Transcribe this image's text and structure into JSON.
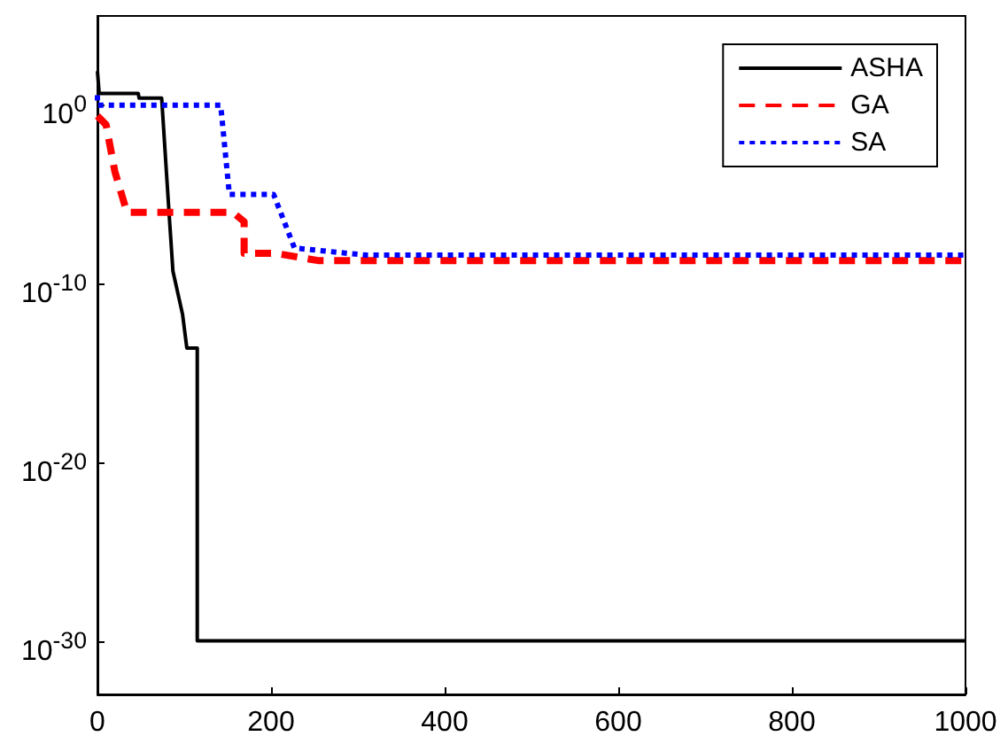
{
  "chart_data": {
    "type": "line",
    "log": "y",
    "grid": false,
    "legend": "top right",
    "marker": "none",
    "xlim": [
      0,
      1000
    ],
    "xticks": [
      0,
      200,
      400,
      600,
      800,
      1000
    ],
    "ylim": [
      1e-33,
      100000.0
    ],
    "yticks": [
      {
        "value": 1e-30,
        "label": "10$^{-30}$"
      },
      {
        "value": 1e-20,
        "label": "10$^{-20}$"
      },
      {
        "value": 1e-10,
        "label": "10$^{-10}$"
      },
      {
        "value": 1,
        "label": "10$^{0}$"
      }
    ],
    "series": [
      {
        "name": "ASHA",
        "color": "#000000",
        "line_style": "solid",
        "x": [
          0,
          2,
          47,
          48,
          74,
          83,
          87,
          98,
          103,
          115,
          115,
          1000
        ],
        "values": [
          80,
          4.6,
          4.6,
          2.5,
          2.5,
          4e-07,
          5e-10,
          2e-12,
          2.5e-14,
          2.5e-14,
          1e-30,
          1e-30
        ]
      },
      {
        "name": "GA",
        "color": "#ff0000",
        "line_style": "dashed",
        "x": [
          0,
          10,
          20,
          34,
          156,
          169,
          169,
          206,
          254,
          1000
        ],
        "values": [
          0.25,
          0.08,
          0.0002,
          1e-06,
          1e-06,
          3e-07,
          5e-09,
          5e-09,
          2e-09,
          2e-09
        ]
      },
      {
        "name": "SA",
        "color": "#0000ff",
        "line_style": "dotted",
        "x": [
          0,
          0,
          142,
          152,
          203,
          227,
          310,
          1000
        ],
        "values": [
          3.6,
          1,
          1,
          1e-05,
          1e-05,
          1e-08,
          4e-09,
          4e-09
        ]
      }
    ]
  }
}
